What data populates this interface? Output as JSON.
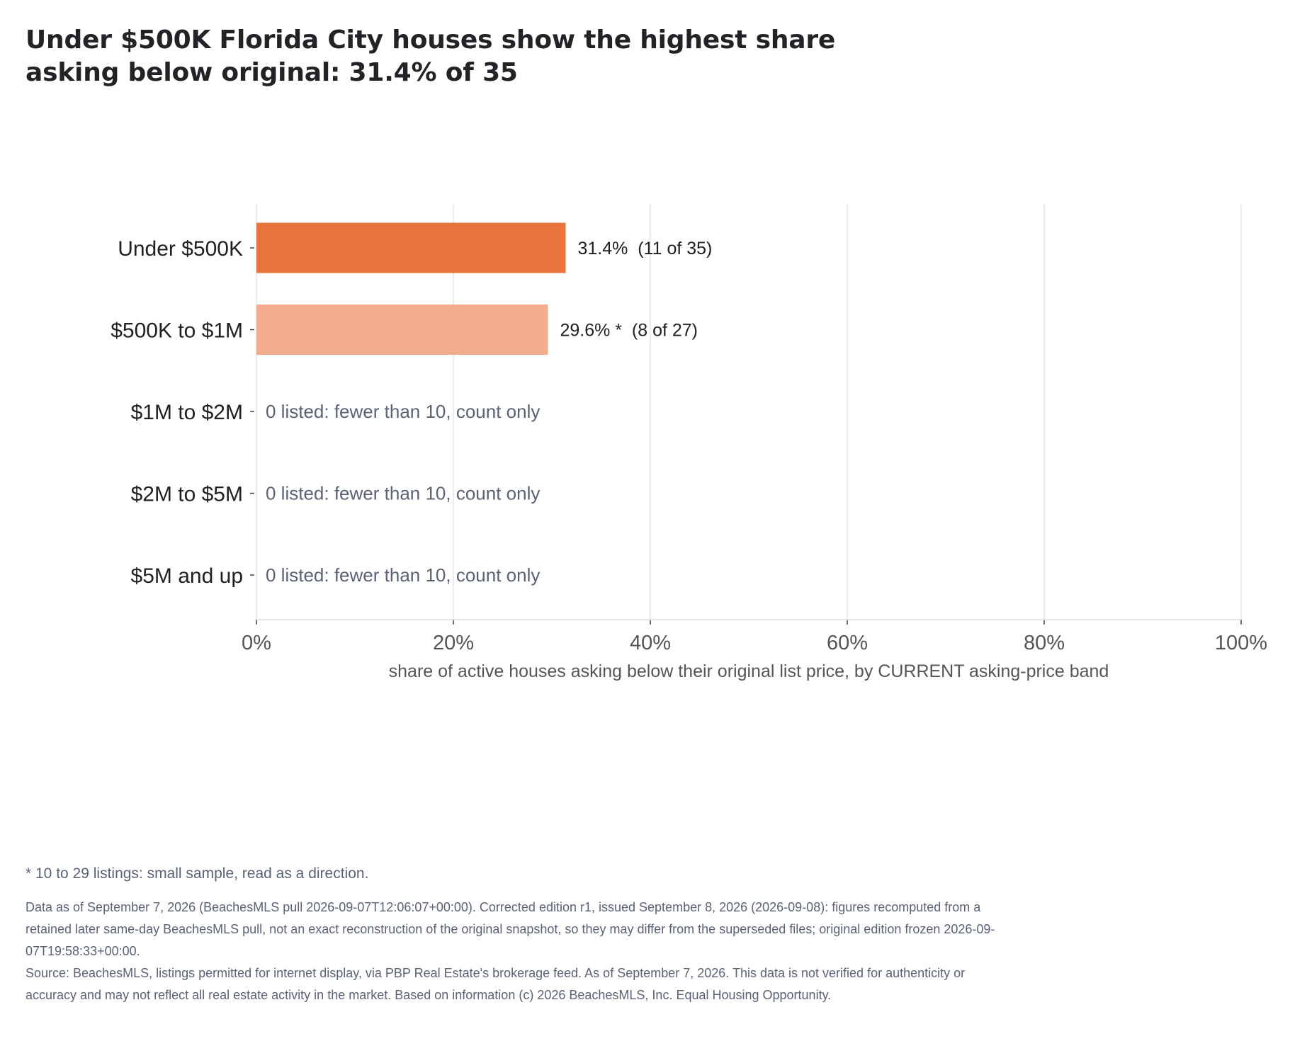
{
  "title": "Under $500K Florida City houses show the highest share asking below original: 31.4% of 35",
  "chart_data": {
    "type": "bar",
    "orientation": "horizontal",
    "categories": [
      "Under $500K",
      "$500K to $1M",
      "$1M to $2M",
      "$2M to $5M",
      "$5M and up"
    ],
    "values": [
      31.4,
      29.6,
      null,
      null,
      null
    ],
    "value_labels": [
      "31.4%  (11 of 35)",
      "29.6% *  (8 of 27)",
      "0 listed: fewer than 10, count only",
      "0 listed: fewer than 10, count only",
      "0 listed: fewer than 10, count only"
    ],
    "bar_colors": [
      "#E8743B",
      "#F1AD8B",
      null,
      null,
      null
    ],
    "xlabel": "share of active houses asking below their original list price, by CURRENT asking-price band",
    "xlim": [
      0,
      100
    ],
    "xticks": [
      0,
      20,
      40,
      60,
      80,
      100
    ],
    "xtick_labels": [
      "0%",
      "20%",
      "40%",
      "60%",
      "80%",
      "100%"
    ],
    "grid": "vertical",
    "colors": {
      "gridline": "#E3E3EA",
      "axis": "#DDDDE6",
      "category_text": "#1F1F24",
      "label_text": "#1F1F24",
      "muted_label_text": "#5A6275",
      "tick_text": "#555555",
      "axis_label_text": "#555555"
    }
  },
  "footnote": "* 10 to 29 listings: small sample, read as a direction.",
  "notes": {
    "edition": "Data as of September 7, 2026 (BeachesMLS pull 2026-09-07T12:06:07+00:00). Corrected edition r1, issued September 8, 2026 (2026-09-08): figures recomputed from a retained later same-day BeachesMLS pull, not an exact reconstruction of the original snapshot, so they may differ from the superseded files; original edition frozen 2026-09-07T19:58:33+00:00.",
    "source": "Source: BeachesMLS, listings permitted for internet display, via PBP Real Estate's brokerage feed. As of September 7, 2026. This data is not verified for authenticity or accuracy and may not reflect all real estate activity in the market. Based on information (c) 2026 BeachesMLS, Inc. Equal Housing Opportunity."
  }
}
